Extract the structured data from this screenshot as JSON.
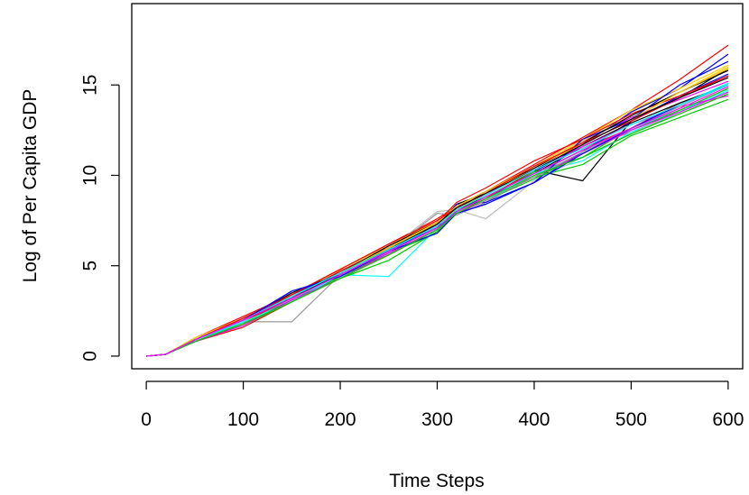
{
  "chart_data": {
    "type": "line",
    "title": "",
    "xlabel": "Time Steps",
    "ylabel": "Log of Per Capita GDP",
    "xlim": [
      -15,
      615
    ],
    "ylim": [
      -0.7,
      19.5
    ],
    "xticks": [
      0,
      100,
      200,
      300,
      400,
      500,
      600
    ],
    "yticks": [
      0,
      5,
      10,
      15
    ],
    "grid": false,
    "legend": "none",
    "series_count": 30,
    "series_colors": [
      "#ff0000",
      "#0000ff",
      "#000000",
      "#00cc00",
      "#00ffff",
      "#ff00ff",
      "#ffcc00",
      "#999999",
      "#ff0000",
      "#0000ff",
      "#000000",
      "#00cc00",
      "#00ffff",
      "#ff00ff",
      "#ffcc00",
      "#bbbbbb",
      "#ff0000",
      "#0000ff",
      "#000000",
      "#00cc00",
      "#00ffff",
      "#ff00ff",
      "#ffcc00",
      "#999999",
      "#ff0000",
      "#0000ff",
      "#000000",
      "#00cc00",
      "#00ffff",
      "#ff00ff"
    ],
    "x": [
      0,
      20,
      50,
      100,
      150,
      200,
      250,
      300,
      320,
      350,
      400,
      450,
      500,
      550,
      600
    ],
    "series": [
      {
        "values": [
          0,
          0.1,
          1.0,
          2.2,
          3.4,
          4.8,
          6.2,
          7.6,
          8.3,
          9.1,
          10.6,
          12.1,
          13.6,
          15.3,
          17.2
        ]
      },
      {
        "values": [
          0,
          0.1,
          0.9,
          2.1,
          3.3,
          4.7,
          6.0,
          7.3,
          8.0,
          8.7,
          10.2,
          11.7,
          13.5,
          14.8,
          16.7
        ]
      },
      {
        "values": [
          0,
          0.1,
          0.9,
          2.0,
          3.2,
          4.6,
          5.9,
          7.2,
          8.4,
          9.0,
          10.3,
          9.7,
          13.0,
          14.3,
          15.9
        ]
      },
      {
        "values": [
          0,
          0.1,
          0.8,
          1.8,
          3.0,
          4.4,
          5.6,
          7.0,
          8.1,
          8.8,
          10.2,
          11.0,
          12.6,
          13.6,
          14.8
        ]
      },
      {
        "values": [
          0,
          0.1,
          0.8,
          1.9,
          3.1,
          4.5,
          4.4,
          7.1,
          7.9,
          8.6,
          10.0,
          11.2,
          12.6,
          13.6,
          14.6
        ]
      },
      {
        "values": [
          0,
          0.1,
          0.9,
          2.0,
          3.3,
          4.6,
          5.9,
          7.3,
          8.2,
          8.9,
          10.4,
          11.9,
          13.2,
          14.2,
          15.2
        ]
      },
      {
        "values": [
          0,
          0.1,
          1.0,
          2.1,
          3.4,
          4.8,
          6.1,
          7.5,
          8.2,
          9.0,
          10.5,
          12.0,
          13.6,
          14.8,
          16.1
        ]
      },
      {
        "values": [
          0,
          0.1,
          0.8,
          1.9,
          1.9,
          4.5,
          5.8,
          7.9,
          7.8,
          8.5,
          10.0,
          11.4,
          12.4,
          13.4,
          14.5
        ]
      },
      {
        "values": [
          0,
          0.1,
          0.8,
          1.6,
          3.0,
          4.3,
          5.6,
          7.0,
          8.0,
          8.7,
          10.3,
          11.5,
          12.6,
          14.0,
          15.0
        ]
      },
      {
        "values": [
          0,
          0.1,
          0.9,
          2.0,
          3.3,
          4.5,
          5.8,
          7.1,
          8.4,
          8.5,
          9.6,
          11.3,
          13.0,
          14.4,
          15.6
        ]
      },
      {
        "values": [
          0,
          0.1,
          0.9,
          2.0,
          3.5,
          4.6,
          6.0,
          7.2,
          8.1,
          8.8,
          10.1,
          11.6,
          12.9,
          14.0,
          15.0
        ]
      },
      {
        "values": [
          0,
          0.1,
          0.8,
          1.7,
          3.0,
          4.3,
          5.3,
          6.9,
          7.9,
          8.6,
          9.9,
          10.6,
          12.2,
          13.2,
          14.2
        ]
      },
      {
        "values": [
          0,
          0.1,
          0.9,
          1.9,
          3.1,
          4.4,
          5.7,
          7.0,
          8.0,
          8.8,
          10.1,
          10.8,
          12.4,
          13.5,
          14.7
        ]
      },
      {
        "values": [
          0,
          0.1,
          0.8,
          1.8,
          3.1,
          4.4,
          5.9,
          7.2,
          8.3,
          8.9,
          10.3,
          11.6,
          12.8,
          13.8,
          14.4
        ]
      },
      {
        "values": [
          0,
          0.1,
          1.0,
          2.1,
          3.3,
          4.7,
          6.0,
          7.3,
          8.1,
          9.0,
          10.4,
          11.9,
          13.3,
          14.6,
          16.0
        ]
      },
      {
        "values": [
          0,
          0.1,
          0.9,
          2.0,
          3.2,
          4.6,
          5.9,
          8.0,
          8.1,
          7.6,
          9.7,
          11.0,
          12.3,
          13.6,
          14.8
        ]
      },
      {
        "values": [
          0,
          0.1,
          0.8,
          1.9,
          3.2,
          4.7,
          6.0,
          7.4,
          8.5,
          9.3,
          10.8,
          12.0,
          13.4,
          14.4,
          15.5
        ]
      },
      {
        "values": [
          0,
          0.1,
          0.9,
          2.0,
          3.4,
          4.6,
          5.9,
          7.1,
          7.9,
          8.4,
          9.6,
          12.0,
          13.1,
          15.0,
          16.3
        ]
      },
      {
        "values": [
          0,
          0.1,
          0.9,
          2.0,
          3.3,
          4.6,
          6.1,
          7.4,
          8.3,
          9.1,
          10.4,
          11.8,
          13.3,
          14.6,
          15.8
        ]
      },
      {
        "values": [
          0,
          0.1,
          0.8,
          1.8,
          3.1,
          4.4,
          5.7,
          6.8,
          7.9,
          8.6,
          9.8,
          11.2,
          12.5,
          13.6,
          14.8
        ]
      },
      {
        "values": [
          0,
          0.1,
          0.8,
          1.9,
          3.0,
          4.5,
          5.8,
          7.1,
          8.0,
          8.6,
          10.1,
          11.4,
          12.6,
          13.9,
          15.1
        ]
      },
      {
        "values": [
          0,
          0.1,
          0.8,
          1.7,
          3.1,
          4.3,
          5.7,
          7.0,
          7.9,
          8.6,
          9.9,
          11.2,
          12.5,
          13.5,
          14.6
        ]
      },
      {
        "values": [
          0,
          0.1,
          0.9,
          2.0,
          3.3,
          4.6,
          6.0,
          7.4,
          8.3,
          9.1,
          10.5,
          11.7,
          13.1,
          14.6,
          15.9
        ]
      },
      {
        "values": [
          0,
          0.1,
          0.9,
          2.0,
          3.2,
          4.5,
          5.8,
          7.1,
          8.0,
          8.6,
          9.9,
          11.3,
          12.6,
          13.8,
          15.0
        ]
      },
      {
        "values": [
          0,
          0.1,
          0.9,
          2.1,
          3.4,
          4.8,
          6.2,
          7.5,
          8.2,
          9.0,
          10.5,
          11.8,
          13.0,
          14.3,
          15.5
        ]
      },
      {
        "values": [
          0,
          0.1,
          0.9,
          2.0,
          3.6,
          4.4,
          5.8,
          6.8,
          7.9,
          8.4,
          9.6,
          11.2,
          12.6,
          13.9,
          15.0
        ]
      },
      {
        "values": [
          0,
          0.1,
          0.9,
          2.0,
          3.2,
          4.6,
          5.9,
          7.3,
          8.2,
          9.0,
          10.3,
          11.7,
          13.1,
          14.3,
          15.4
        ]
      },
      {
        "values": [
          0,
          0.1,
          0.8,
          1.8,
          3.0,
          4.3,
          5.6,
          7.0,
          7.9,
          8.7,
          10.0,
          11.0,
          12.3,
          13.4,
          14.5
        ]
      },
      {
        "values": [
          0,
          0.1,
          0.9,
          2.0,
          3.3,
          4.6,
          5.9,
          7.2,
          8.1,
          8.9,
          10.3,
          11.5,
          12.8,
          13.9,
          15.0
        ]
      },
      {
        "values": [
          0,
          0.1,
          0.9,
          2.0,
          3.2,
          4.5,
          5.8,
          7.1,
          8.0,
          8.8,
          10.1,
          11.4,
          12.6,
          13.7,
          14.9
        ]
      }
    ]
  }
}
